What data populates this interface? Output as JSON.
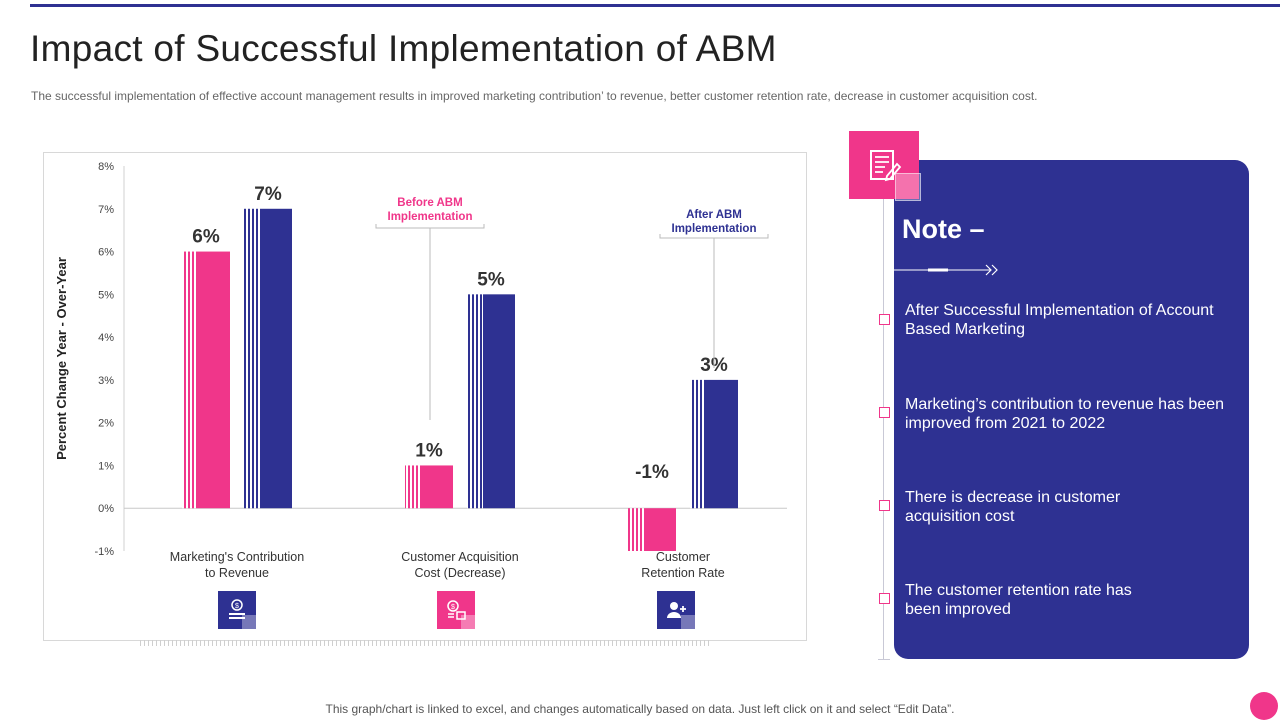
{
  "title": "Impact of Successful Implementation of ABM",
  "subtitle": "The successful implementation  of effective  account management  results in improved  marketing contribution’ to revenue,  better customer retention rate, decrease in customer acquisition cost.",
  "chart_data": {
    "type": "bar",
    "ylabel": "Percent Change Year - Over-Year",
    "ylim": [
      -1,
      8
    ],
    "yticks": [
      "8%",
      "7%",
      "6%",
      "5%",
      "4%",
      "3%",
      "2%",
      "1%",
      "0%",
      "-1%"
    ],
    "categories": [
      "Marketing's Contribution\nto Revenue",
      "Customer Acquisition\nCost (Decrease)",
      "Customer\nRetention Rate"
    ],
    "series": [
      {
        "name": "Before ABM Implementation",
        "values": [
          6,
          1,
          -1
        ],
        "labels": [
          "6%",
          "1%",
          "-1%"
        ],
        "color": "#f0368a"
      },
      {
        "name": "After ABM Implementation",
        "values": [
          7,
          5,
          3
        ],
        "labels": [
          "7%",
          "5%",
          "3%"
        ],
        "color": "#2e3192"
      }
    ],
    "callouts": [
      {
        "text": "Before ABM\nImplementation",
        "color": "#f0368a"
      },
      {
        "text": "After ABM\nImplementation",
        "color": "#2e3192"
      }
    ],
    "grid": false,
    "category_icons": [
      "money-growth-icon",
      "money-stack-icon",
      "user-plus-icon"
    ]
  },
  "note": {
    "title": "Note –",
    "icon": "document-pen-icon",
    "items": [
      "After Successful Implementation  of Account Based Marketing",
      "Marketing’s contribution to revenue has been improved from 2021 to 2022",
      "There is decrease in customer acquisition cost",
      "The customer retention rate has been improved"
    ]
  },
  "footer": "This graph/chart is linked to excel, and changes automatically based on data. Just left click on it and select “Edit Data”.",
  "colors": {
    "pink": "#f0368a",
    "navy": "#2e3192"
  }
}
